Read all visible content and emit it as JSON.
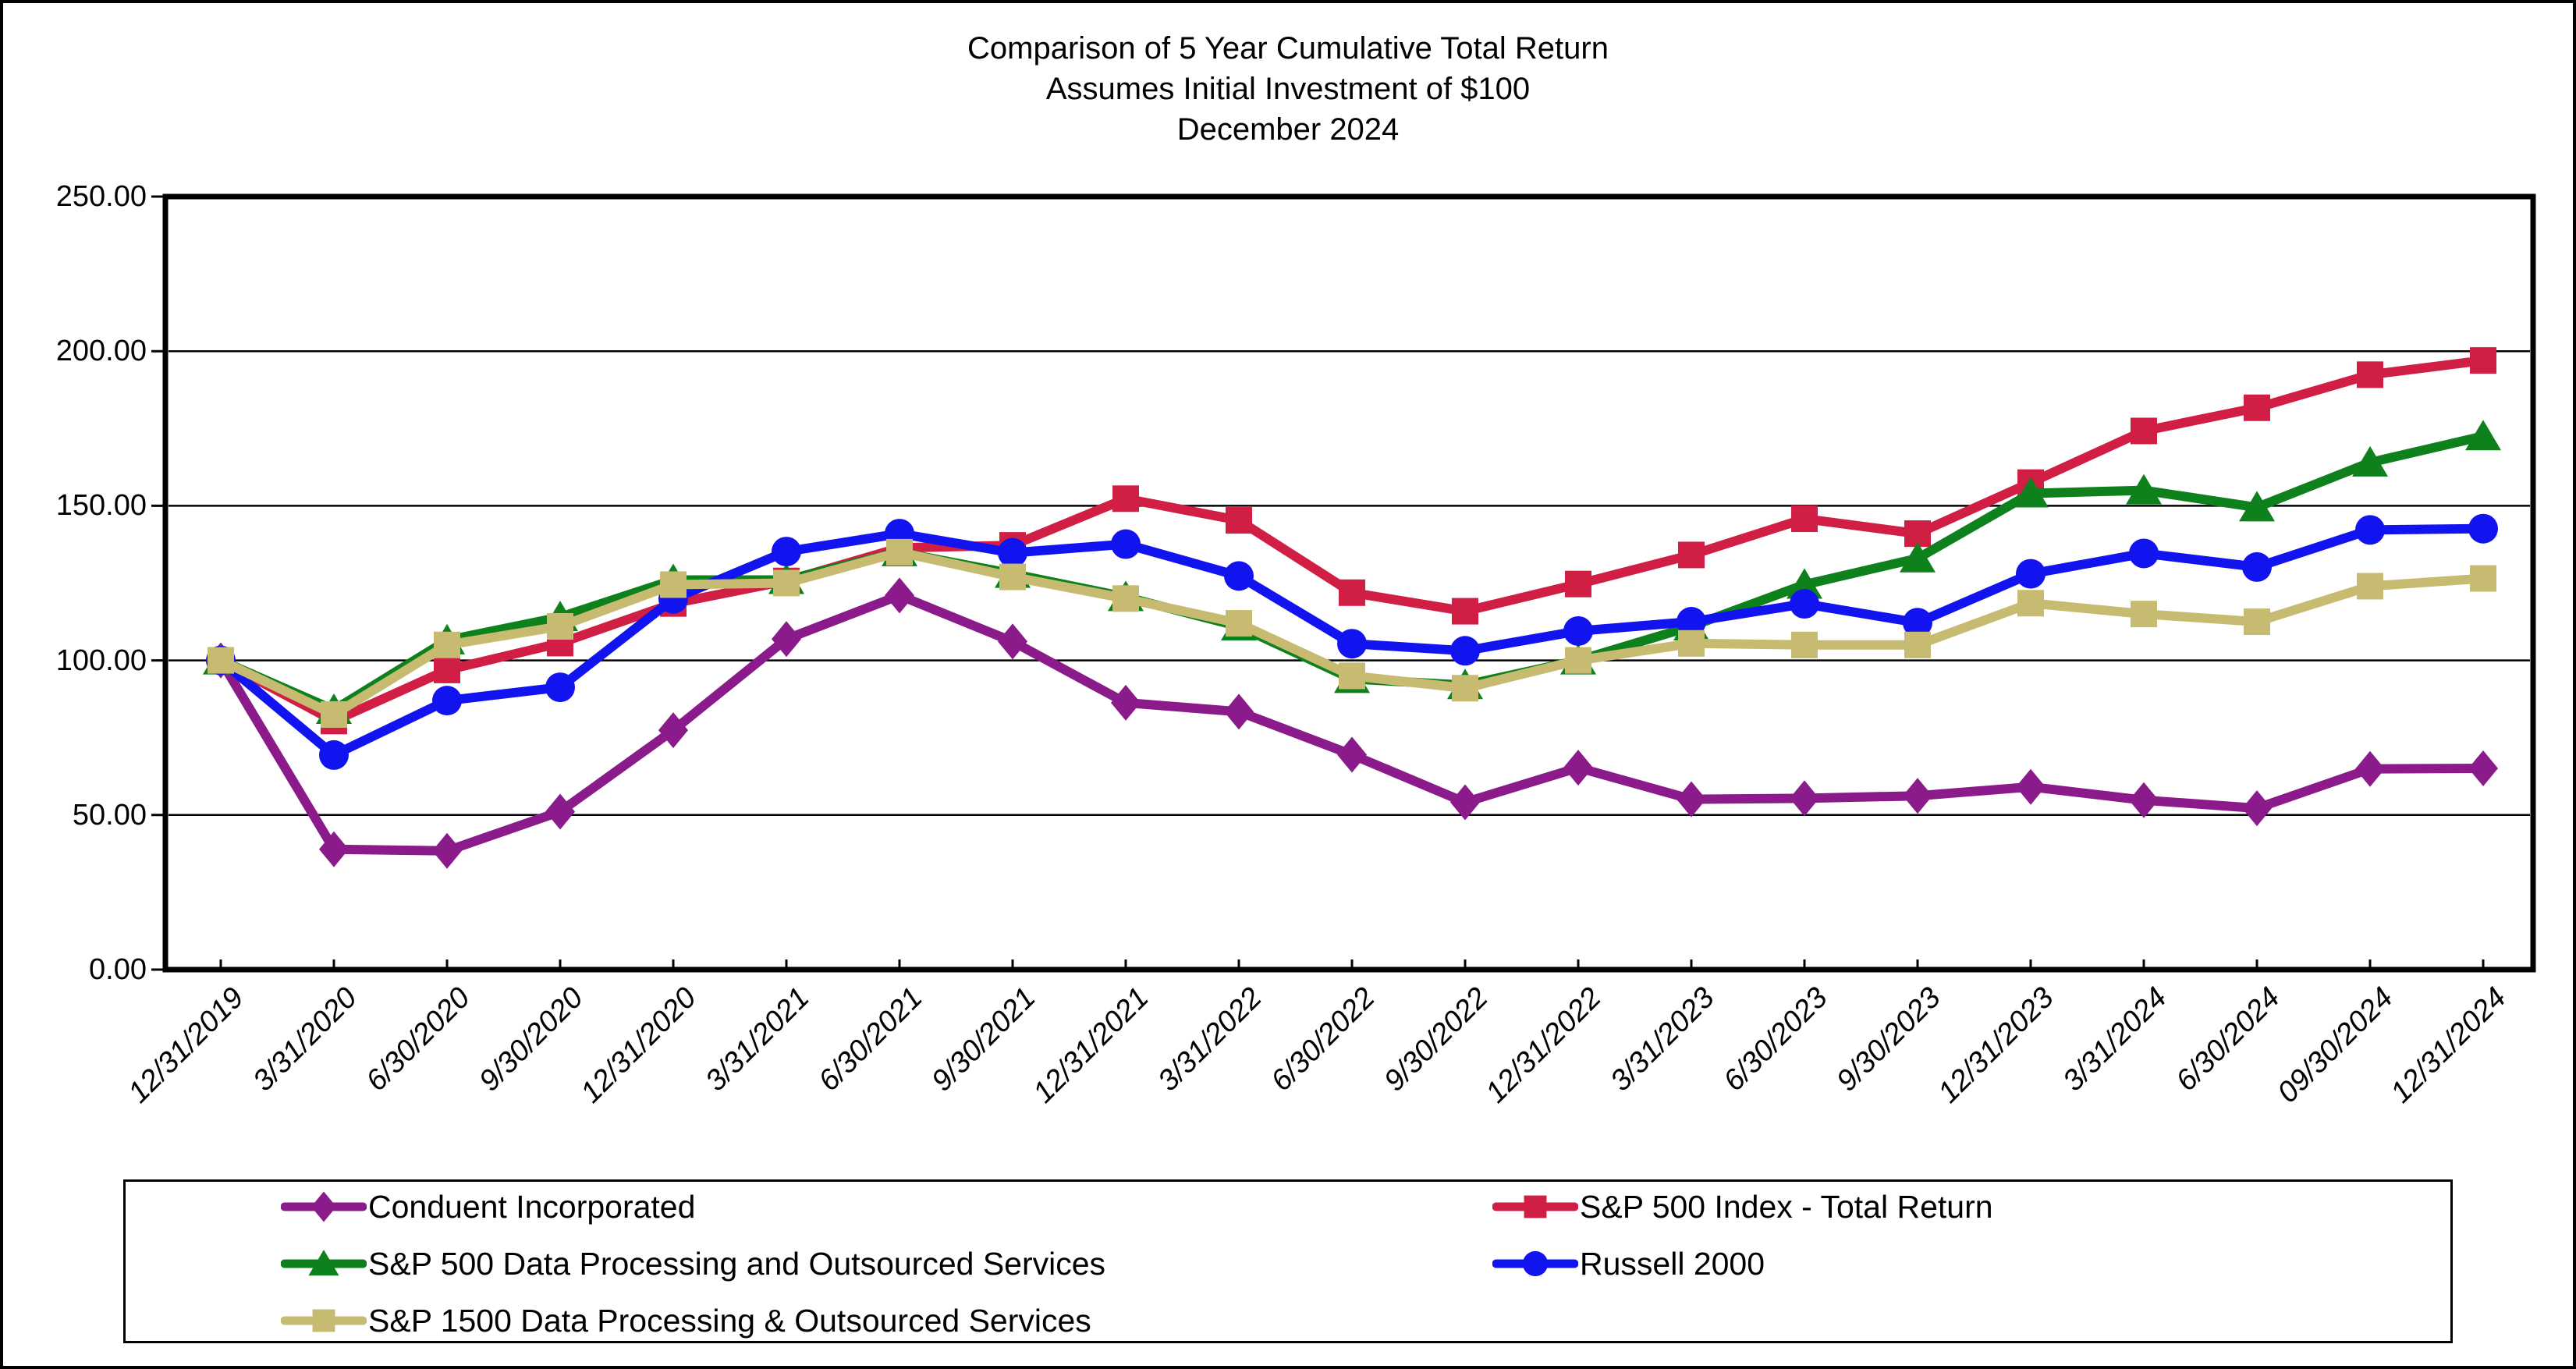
{
  "title": {
    "line1": "Comparison of 5 Year Cumulative Total Return",
    "line2": "Assumes Initial Investment of $100",
    "line3": "December 2024"
  },
  "chart_data": {
    "type": "line",
    "title": "Comparison of 5 Year Cumulative Total Return",
    "subtitle": "Assumes Initial Investment of $100",
    "period_label": "December 2024",
    "xlabel": "",
    "ylabel": "",
    "ylim": [
      0,
      250
    ],
    "y_ticks": [
      "0.00",
      "50.00",
      "100.00",
      "150.00",
      "200.00",
      "250.00"
    ],
    "grid": true,
    "legend_position": "bottom",
    "categories": [
      "12/31/2019",
      "3/31/2020",
      "6/30/2020",
      "9/30/2020",
      "12/31/2020",
      "3/31/2021",
      "6/30/2021",
      "9/30/2021",
      "12/31/2021",
      "3/31/2022",
      "6/30/2022",
      "9/30/2022",
      "12/31/2022",
      "3/31/2023",
      "6/30/2023",
      "9/30/2023",
      "12/31/2023",
      "3/31/2024",
      "6/30/2024",
      "09/30/2024",
      "12/31/2024"
    ],
    "series": [
      {
        "name": "Conduent Incorporated",
        "color": "#8B1A8B",
        "marker": "diamond",
        "values": [
          100,
          38.9,
          38.4,
          51.1,
          77.4,
          106.9,
          121.0,
          106.1,
          86.3,
          83.4,
          69.5,
          54.1,
          65.3,
          55.1,
          55.4,
          56.2,
          59.1,
          54.8,
          52.2,
          64.9,
          65.1
        ]
      },
      {
        "name": "S&P 500 Index - Total Return",
        "color": "#D01E45",
        "marker": "square",
        "values": [
          100,
          80.4,
          96.9,
          105.6,
          118.4,
          125.7,
          136.4,
          137.2,
          152.3,
          145.3,
          121.9,
          115.9,
          124.7,
          134.1,
          145.8,
          141.0,
          157.5,
          174.2,
          181.7,
          192.4,
          197.0
        ]
      },
      {
        "name": "S&P 500 Data Processing and Outsourced Services",
        "color": "#0E811C",
        "marker": "triangle",
        "values": [
          100,
          84.0,
          106.5,
          114.0,
          126.0,
          126.0,
          135.0,
          128.0,
          120.5,
          111.0,
          94.0,
          92.0,
          100.0,
          111.0,
          124.5,
          133.0,
          154.0,
          155.0,
          149.5,
          164.0,
          172.5
        ]
      },
      {
        "name": "Russell 2000",
        "color": "#1214EF",
        "marker": "circle",
        "values": [
          100,
          69.4,
          87.0,
          91.3,
          119.9,
          135.2,
          141.0,
          134.8,
          137.6,
          127.3,
          105.4,
          103.1,
          109.5,
          112.5,
          118.3,
          112.2,
          128.0,
          134.6,
          130.2,
          142.2,
          142.6
        ]
      },
      {
        "name": "S&P 1500 Data Processing & Outsourced Services",
        "color": "#C7BB72",
        "marker": "square",
        "values": [
          100,
          82.5,
          105.0,
          111.0,
          124.5,
          125.0,
          135.0,
          127.0,
          120.0,
          112.0,
          95.0,
          91.0,
          100.0,
          105.5,
          105.0,
          105.0,
          118.5,
          115.0,
          112.5,
          124.0,
          126.5
        ]
      }
    ]
  }
}
